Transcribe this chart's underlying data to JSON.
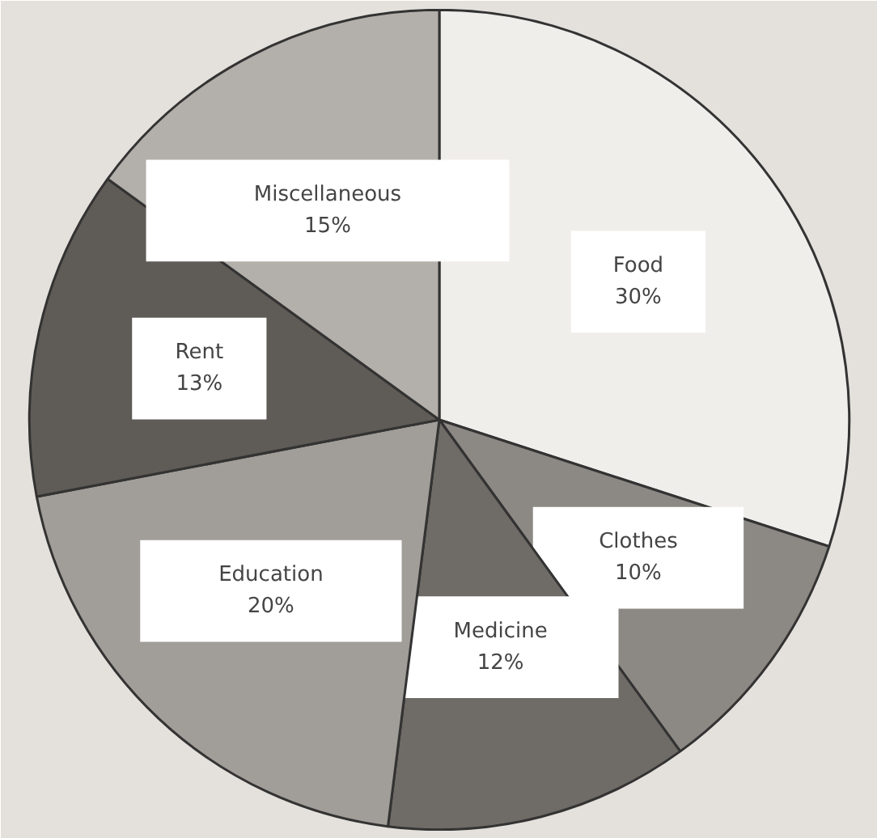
{
  "chart_data": {
    "type": "pie",
    "categories": [
      "Food",
      "Clothes",
      "Medicine",
      "Education",
      "Rent",
      "Miscellaneous"
    ],
    "values": [
      30,
      10,
      12,
      20,
      13,
      15
    ],
    "value_labels": [
      "30%",
      "10%",
      "12%",
      "20%",
      "13%",
      "15%"
    ],
    "colors": [
      "#f0eeeb",
      "#8c8883",
      "#6f6b67",
      "#a19d98",
      "#5f5b57",
      "#b3afaa"
    ]
  }
}
